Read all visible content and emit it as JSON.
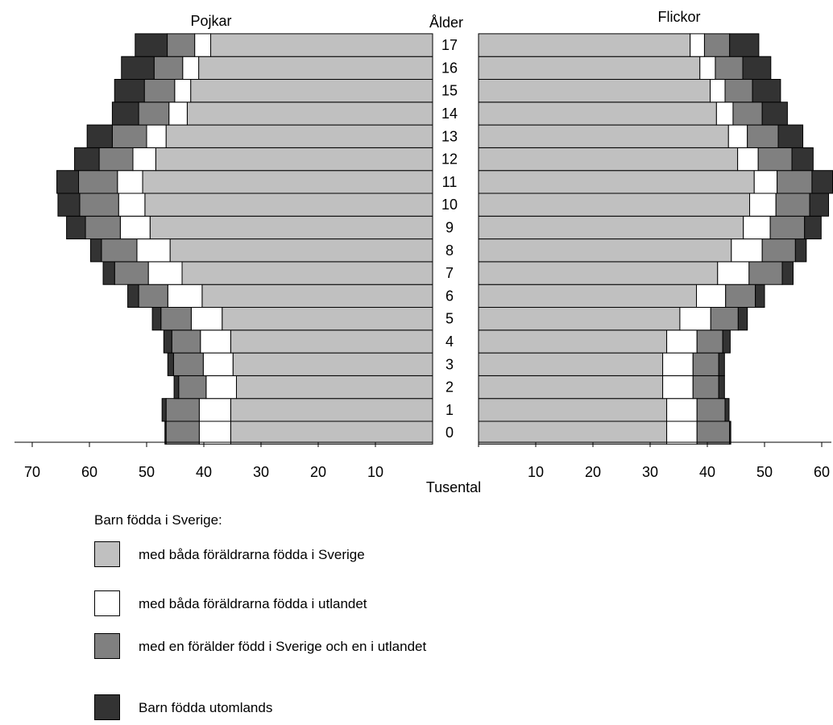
{
  "chart_data": {
    "type": "bar",
    "subtype": "population-pyramid",
    "left_title": "Pojkar",
    "right_title": "Flickor",
    "center_label": "Ålder",
    "xlabel": "Tusental",
    "categories": [
      "0",
      "1",
      "2",
      "3",
      "4",
      "5",
      "6",
      "7",
      "8",
      "9",
      "10",
      "11",
      "12",
      "13",
      "14",
      "15",
      "16",
      "17"
    ],
    "xlim": [
      0,
      70
    ],
    "left_ticks": [
      70,
      60,
      50,
      40,
      30,
      20,
      10
    ],
    "right_ticks": [
      10,
      20,
      30,
      40,
      50,
      60
    ],
    "legend_heading": "Barn födda i Sverige:",
    "series": [
      {
        "name": "med båda föräldrarna födda i Sverige",
        "color": "#c0c0c0",
        "boys": [
          35.3,
          35.3,
          34.3,
          34.9,
          35.3,
          36.8,
          40.3,
          43.8,
          45.9,
          49.4,
          50.3,
          50.7,
          48.4,
          46.6,
          42.9,
          42.3,
          40.9,
          38.8
        ],
        "girls": [
          32.9,
          32.9,
          32.2,
          32.2,
          32.9,
          35.2,
          38.1,
          41.8,
          44.2,
          46.3,
          47.4,
          48.2,
          45.3,
          43.7,
          41.6,
          40.5,
          38.7,
          37.0
        ]
      },
      {
        "name": "med båda föräldrarna födda i utlandet",
        "color": "#ffffff",
        "boys": [
          5.5,
          5.5,
          5.3,
          5.2,
          5.3,
          5.4,
          6.0,
          5.9,
          5.8,
          5.2,
          4.6,
          4.4,
          4.0,
          3.4,
          3.2,
          2.8,
          2.8,
          2.8
        ],
        "girls": [
          5.3,
          5.3,
          5.3,
          5.3,
          5.3,
          5.4,
          5.1,
          5.5,
          5.4,
          4.7,
          4.6,
          4.0,
          3.6,
          3.3,
          2.9,
          2.6,
          2.7,
          2.5
        ]
      },
      {
        "name": "med en förälder född i Sverige och en i utlandet",
        "color": "#808080",
        "boys": [
          5.8,
          5.8,
          4.8,
          5.2,
          5.0,
          5.3,
          5.1,
          5.9,
          6.2,
          6.1,
          6.8,
          6.8,
          5.9,
          6.0,
          5.3,
          5.3,
          5.0,
          4.8
        ],
        "girls": [
          5.7,
          4.9,
          4.5,
          4.5,
          4.5,
          4.8,
          5.2,
          5.8,
          5.8,
          6.0,
          5.9,
          6.1,
          5.9,
          5.4,
          5.1,
          4.8,
          4.8,
          4.4
        ]
      },
      {
        "name": "Barn födda utomlands",
        "color": "#333333",
        "boys": [
          0.2,
          0.7,
          0.8,
          1.0,
          1.4,
          1.5,
          1.9,
          2.0,
          1.9,
          3.3,
          3.8,
          3.8,
          4.3,
          4.4,
          4.6,
          5.2,
          5.7,
          5.6
        ],
        "girls": [
          0.2,
          0.7,
          1.0,
          1.0,
          1.3,
          1.6,
          1.6,
          1.9,
          1.9,
          2.9,
          3.3,
          3.6,
          3.7,
          4.3,
          4.4,
          4.9,
          4.9,
          5.1
        ]
      }
    ]
  }
}
